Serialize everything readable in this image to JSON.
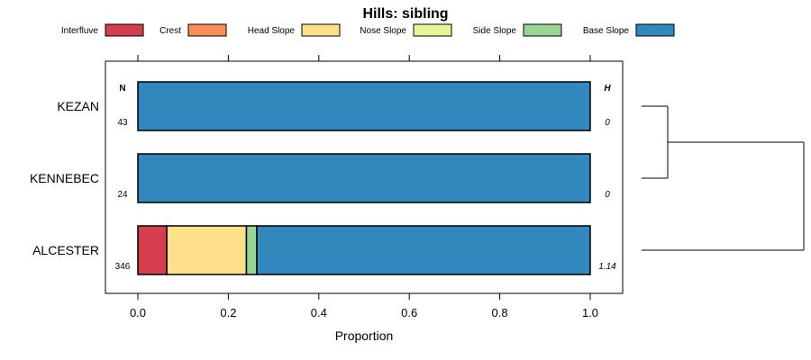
{
  "chart_data": {
    "type": "bar",
    "orientation": "horizontal",
    "stacked": true,
    "title": "Hills: sibling",
    "xlabel": "Proportion",
    "ylabel": "",
    "xlim": [
      0,
      1
    ],
    "x_ticks": [
      "0.0",
      "0.2",
      "0.4",
      "0.6",
      "0.8",
      "1.0"
    ],
    "legend_position": "top",
    "column_headers": {
      "n": "N",
      "h": "H"
    },
    "series_names": [
      "Interfluve",
      "Crest",
      "Head Slope",
      "Nose Slope",
      "Side Slope",
      "Base Slope"
    ],
    "colors": {
      "Interfluve": "#D53E4F",
      "Crest": "#FC8D59",
      "Head Slope": "#FEE08B",
      "Nose Slope": "#E6F598",
      "Side Slope": "#99D594",
      "Base Slope": "#3288BD"
    },
    "categories": [
      "KEZAN",
      "KENNEBEC",
      "ALCESTER"
    ],
    "n": [
      "43",
      "24",
      "346"
    ],
    "h": [
      "0",
      "0",
      "1.14"
    ],
    "series": [
      {
        "name": "Interfluve",
        "values": [
          0,
          0,
          0.064
        ]
      },
      {
        "name": "Crest",
        "values": [
          0,
          0,
          0
        ]
      },
      {
        "name": "Head Slope",
        "values": [
          0,
          0,
          0.176
        ]
      },
      {
        "name": "Nose Slope",
        "values": [
          0,
          0,
          0
        ]
      },
      {
        "name": "Side Slope",
        "values": [
          0,
          0,
          0.023
        ]
      },
      {
        "name": "Base Slope",
        "values": [
          1,
          1,
          0.737
        ]
      }
    ],
    "dendrogram": {
      "merges": [
        [
          "KEZAN",
          "KENNEBEC"
        ],
        [
          "KEZAN+KENNEBEC",
          "ALCESTER"
        ]
      ]
    }
  }
}
